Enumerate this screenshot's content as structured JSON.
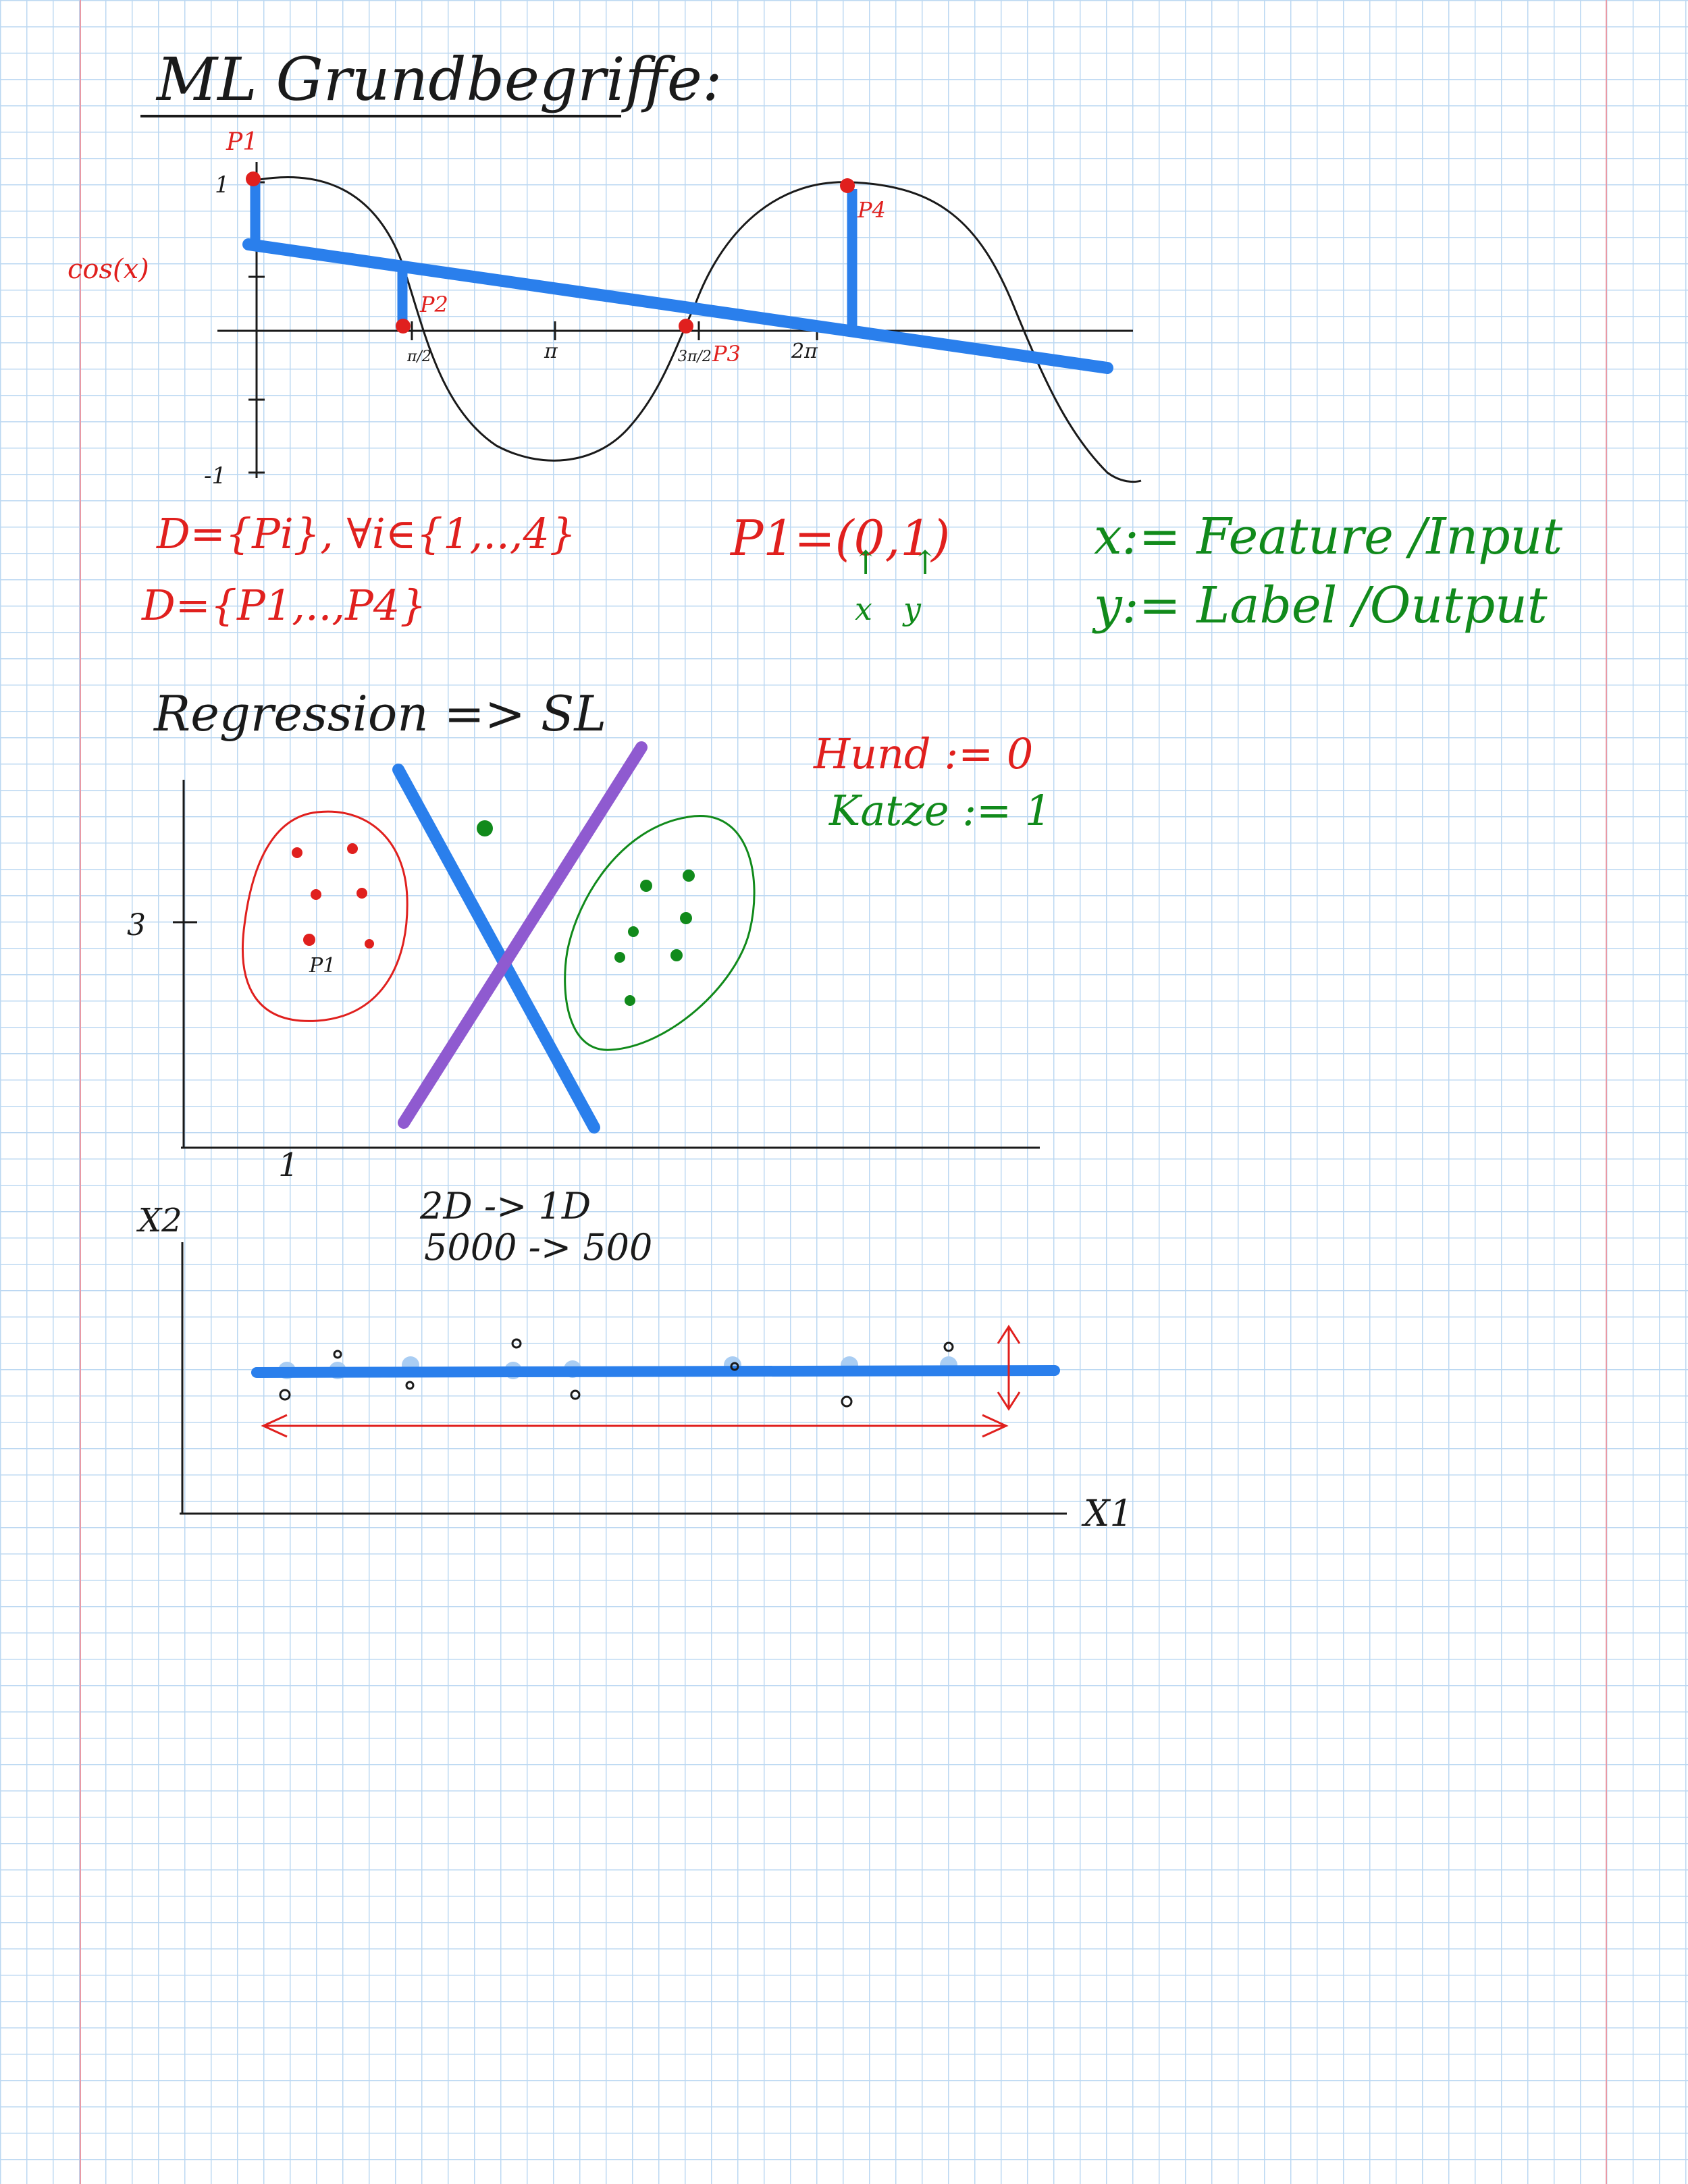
{
  "title": "ML Grundbegriffe:",
  "curve": {
    "ylabel": "cos(x)",
    "y_ticks": [
      "1",
      "-1"
    ],
    "x_ticks": [
      "π/2",
      "π",
      "3π/2",
      "2π"
    ],
    "points": [
      {
        "label": "P1",
        "x": 0,
        "y": 1
      },
      {
        "label": "P2",
        "x": 1.571,
        "y": 0
      },
      {
        "label": "P3",
        "x": 4.712,
        "y": 0
      },
      {
        "label": "P4",
        "x": 6.283,
        "y": 1
      }
    ]
  },
  "notes": {
    "dataset_def": "D={Pi}, ∀i∈{1,..,4}",
    "dataset_list": "D={P1,..,P4}",
    "point_example": "P1=(0,1)",
    "point_x": "x",
    "point_y": "y",
    "feature_def": "x:= Feature /Input",
    "label_def": "y:= Label /Output",
    "regression": "Regression => SL",
    "hund": "Hund := 0",
    "katze": "Katze := 1",
    "dim_reduction": "2D -> 1D",
    "count_reduction": "5000 -> 500"
  },
  "scatter": {
    "y_tick": "3",
    "x_tick": "1",
    "point_label": "P1"
  },
  "projection": {
    "xlabel": "X1",
    "ylabel": "X2"
  },
  "colors": {
    "ink": "#1a1a1a",
    "red": "#e0201e",
    "green": "#118a1b",
    "blue": "#2a7fec",
    "purple": "#8f5ad0",
    "light_blue": "#a9cdf3"
  }
}
